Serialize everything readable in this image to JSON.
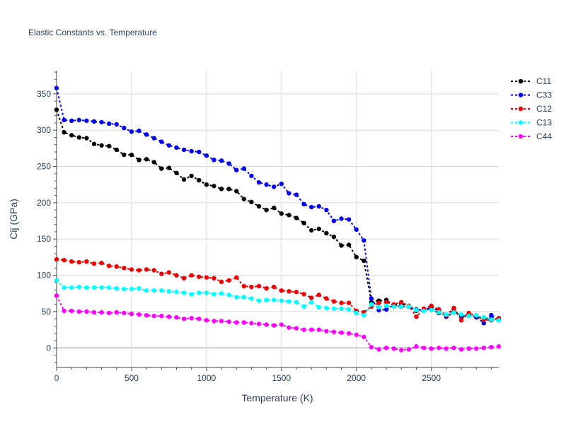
{
  "chart_data": {
    "type": "line",
    "title": "Elastic Constants vs. Temperature",
    "xlabel": "Temperature (K)",
    "ylabel": "Cij (GPa)",
    "xlim": [
      0,
      2950
    ],
    "ylim": [
      -27,
      382
    ],
    "xticks": [
      0,
      500,
      1000,
      1500,
      2000,
      2500
    ],
    "xtick_labels": [
      "0",
      "500",
      "1000",
      "1500",
      "2000",
      "2500"
    ],
    "yticks": [
      0,
      50,
      100,
      150,
      200,
      250,
      300,
      350
    ],
    "ytick_labels": [
      "0",
      "50",
      "100",
      "150",
      "200",
      "250",
      "300",
      "350"
    ],
    "grid": true,
    "legend_position": "right",
    "x": [
      0,
      50,
      100,
      150,
      200,
      250,
      300,
      350,
      400,
      450,
      500,
      550,
      600,
      650,
      700,
      750,
      800,
      850,
      900,
      950,
      1000,
      1050,
      1100,
      1150,
      1200,
      1250,
      1300,
      1350,
      1400,
      1450,
      1500,
      1550,
      1600,
      1650,
      1700,
      1750,
      1800,
      1850,
      1900,
      1950,
      2000,
      2050,
      2100,
      2150,
      2200,
      2250,
      2300,
      2350,
      2400,
      2450,
      2500,
      2550,
      2600,
      2650,
      2700,
      2750,
      2800,
      2850,
      2900,
      2950
    ],
    "series": [
      {
        "name": "C11",
        "color": "#000000",
        "values": [
          328,
          297,
          293,
          290,
          289,
          281,
          279,
          278,
          273,
          266,
          266,
          259,
          260,
          256,
          247,
          248,
          241,
          232,
          237,
          231,
          225,
          223,
          219,
          219,
          216,
          205,
          201,
          195,
          190,
          193,
          185,
          183,
          179,
          172,
          162,
          164,
          158,
          153,
          141,
          142,
          125,
          120,
          63,
          65,
          66,
          58,
          61,
          57,
          51,
          54,
          53,
          48,
          45,
          53,
          42,
          47,
          42,
          41,
          40,
          39
        ]
      },
      {
        "name": "C33",
        "color": "#0000ee",
        "values": [
          358,
          314,
          313,
          314,
          313,
          312,
          311,
          309,
          308,
          303,
          298,
          299,
          294,
          289,
          284,
          279,
          276,
          273,
          271,
          270,
          265,
          259,
          258,
          254,
          245,
          247,
          237,
          228,
          225,
          222,
          226,
          213,
          211,
          198,
          194,
          195,
          190,
          175,
          178,
          177,
          163,
          148,
          68,
          52,
          53,
          59,
          57,
          57,
          53,
          52,
          56,
          51,
          43,
          49,
          45,
          44,
          43,
          34,
          45,
          38
        ]
      },
      {
        "name": "C12",
        "color": "#ee0000",
        "values": [
          122,
          121,
          119,
          118,
          119,
          116,
          117,
          113,
          112,
          110,
          108,
          107,
          108,
          107,
          102,
          104,
          100,
          96,
          100,
          98,
          97,
          96,
          91,
          93,
          97,
          85,
          84,
          85,
          82,
          84,
          79,
          78,
          77,
          74,
          69,
          73,
          68,
          64,
          62,
          62,
          51,
          49,
          57,
          62,
          63,
          60,
          63,
          58,
          43,
          54,
          58,
          53,
          45,
          55,
          38,
          48,
          44,
          39,
          38,
          41
        ]
      },
      {
        "name": "C13",
        "color": "#00ffff",
        "values": [
          93,
          83,
          83,
          84,
          83,
          83,
          83,
          83,
          82,
          81,
          81,
          82,
          79,
          79,
          79,
          78,
          77,
          76,
          74,
          76,
          76,
          74,
          75,
          73,
          70,
          70,
          68,
          65,
          66,
          66,
          65,
          64,
          63,
          57,
          63,
          56,
          55,
          54,
          54,
          53,
          48,
          45,
          60,
          56,
          58,
          57,
          57,
          57,
          52,
          51,
          52,
          49,
          46,
          49,
          46,
          44,
          45,
          42,
          39,
          38
        ]
      },
      {
        "name": "C44",
        "color": "#ff00ff",
        "values": [
          72,
          51,
          51,
          50,
          50,
          49,
          49,
          48,
          49,
          48,
          47,
          46,
          45,
          44,
          44,
          43,
          42,
          40,
          41,
          40,
          38,
          37,
          37,
          36,
          35,
          35,
          34,
          33,
          32,
          31,
          32,
          28,
          27,
          25,
          25,
          25,
          23,
          22,
          21,
          20,
          18,
          15,
          1,
          -2,
          0,
          -1,
          -3,
          -2,
          2,
          0,
          -1,
          0,
          -1,
          0,
          -2,
          -1,
          -1,
          0,
          1,
          2
        ]
      }
    ]
  }
}
